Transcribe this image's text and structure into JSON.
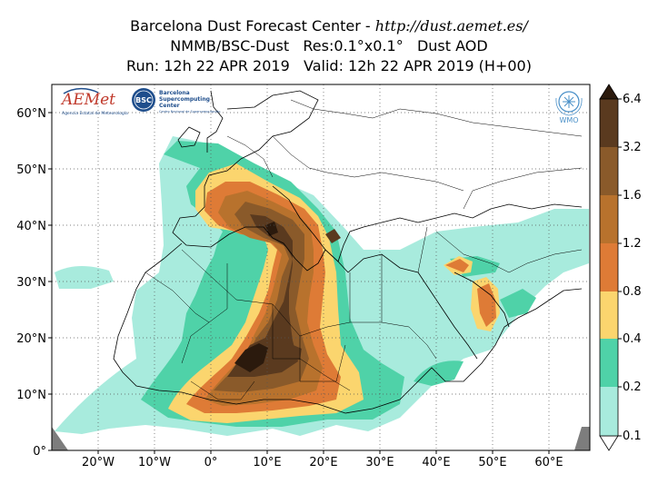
{
  "title": {
    "line1_prefix": "Barcelona Dust Forecast Center - ",
    "line1_url": "http://dust.aemet.es/",
    "line2": "NMMB/BSC-Dust   Res:0.1°x0.1°   Dust AOD",
    "line3": "Run: 12h 22 APR 2019   Valid: 12h 22 APR 2019 (H+00)"
  },
  "map": {
    "variable": "Dust AOD",
    "lon_ticks": [
      "20°W",
      "10°W",
      "0°",
      "10°E",
      "20°E",
      "30°E",
      "40°E",
      "50°E",
      "60°E"
    ],
    "lat_ticks": [
      "0°",
      "10°N",
      "20°N",
      "30°N",
      "40°N",
      "50°N",
      "60°N"
    ],
    "gridlines": "dotted"
  },
  "logos": {
    "aemet": "AEMet",
    "aemet_sub": "Agencia Estatal de Meteorología",
    "bsc": "BSC",
    "bsc_text_1": "Barcelona",
    "bsc_text_2": "Supercomputing",
    "bsc_text_3": "Center",
    "bsc_sub": "Centro Nacional de Supercomputación",
    "wmo": "WMO"
  },
  "colorbar": {
    "labels": [
      "0.1",
      "0.2",
      "0.4",
      "0.8",
      "1.2",
      "1.6",
      "3.2",
      "6.4"
    ],
    "colors": [
      "#a8ebdd",
      "#4fd2a8",
      "#fbd56e",
      "#de7b36",
      "#b8722d",
      "#8a5a2a",
      "#5a3a1f"
    ],
    "extend_colors": {
      "over": "#2b1a0d",
      "under": "#ffffff"
    }
  }
}
